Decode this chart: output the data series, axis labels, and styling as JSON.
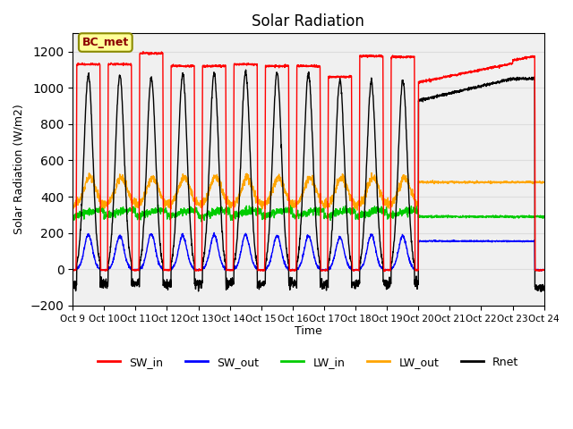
{
  "title": "Solar Radiation",
  "ylabel": "Solar Radiation (W/m2)",
  "xlabel": "Time",
  "ylim": [
    -200,
    1300
  ],
  "yticks": [
    -200,
    0,
    200,
    400,
    600,
    800,
    1000,
    1200
  ],
  "xlim": [
    0,
    15
  ],
  "xtick_labels": [
    "Oct 9",
    "Oct 10",
    "Oct 11",
    "Oct 12",
    "Oct 13",
    "Oct 14",
    "Oct 15",
    "Oct 16",
    "Oct 17",
    "Oct 18",
    "Oct 19",
    "Oct 20",
    "Oct 21",
    "Oct 22",
    "Oct 23",
    "Oct 24"
  ],
  "annotation_text": "BC_met",
  "annotation_box_color": "#FFFF99",
  "annotation_border_color": "#8B8B00",
  "colors": {
    "SW_in": "#FF0000",
    "SW_out": "#0000FF",
    "LW_in": "#00CC00",
    "LW_out": "#FFA500",
    "Rnet": "#000000"
  },
  "legend_items": [
    "SW_in",
    "SW_out",
    "LW_in",
    "LW_out",
    "Rnet"
  ],
  "grid_color": "#DDDDDD",
  "background_color": "#F0F0F0"
}
